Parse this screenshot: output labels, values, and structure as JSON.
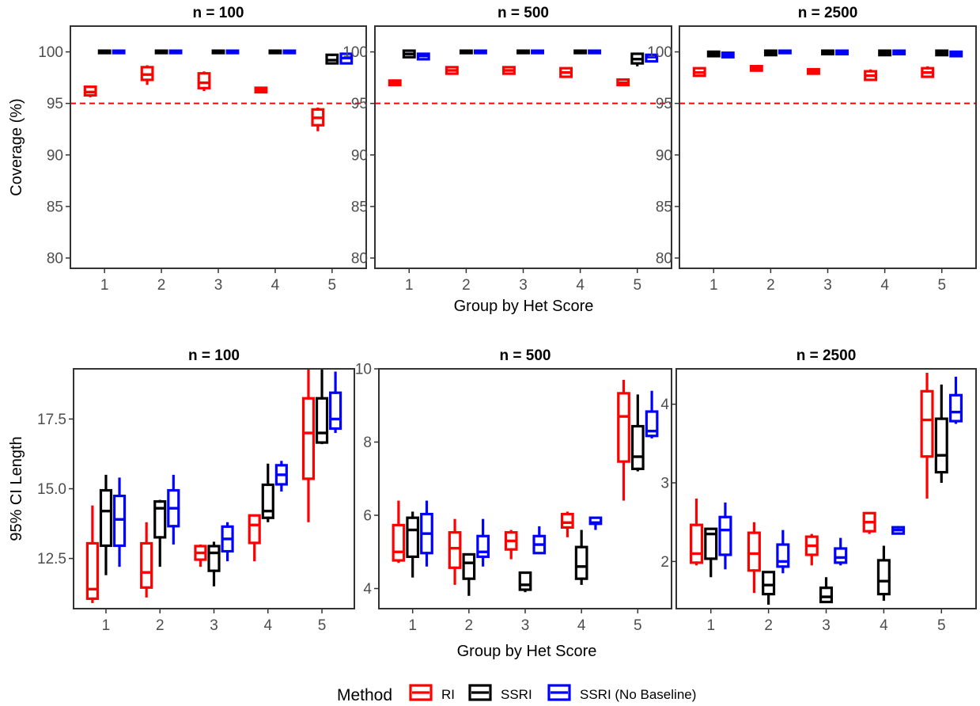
{
  "figure": {
    "x_axis_title": "Group by Het Score",
    "legend": {
      "title": "Method",
      "placement": "bottom"
    },
    "methods": [
      {
        "name": "RI",
        "color": "#ff0000"
      },
      {
        "name": "SSRI",
        "color": "#000000"
      },
      {
        "name": "SSRI (No Baseline)",
        "color": "#0000ff"
      }
    ]
  },
  "chart_data": [
    {
      "type": "box",
      "title": "n = 100",
      "ylabel": "Coverage (%)",
      "categories": [
        "1",
        "2",
        "3",
        "4",
        "5"
      ],
      "ylim": [
        79,
        102.5
      ],
      "yticks": [
        80,
        85,
        90,
        95,
        100
      ],
      "reference_line": 95,
      "series": [
        {
          "name": "RI",
          "boxes": [
            [
              95.6,
              95.9,
              96.1,
              96.5,
              96.7
            ],
            [
              96.8,
              97.4,
              97.8,
              98.4,
              98.7
            ],
            [
              96.2,
              96.6,
              97.0,
              97.8,
              98.1
            ],
            [
              96.1,
              96.2,
              96.3,
              96.4,
              96.5
            ],
            [
              92.3,
              93.0,
              93.6,
              94.3,
              94.6
            ]
          ]
        },
        {
          "name": "SSRI",
          "boxes": [
            [
              100,
              100,
              100,
              100,
              100
            ],
            [
              100,
              100,
              100,
              100,
              100
            ],
            [
              100,
              100,
              100,
              100,
              100
            ],
            [
              100,
              100,
              100,
              100,
              100
            ],
            [
              98.9,
              99.0,
              99.2,
              99.6,
              99.7
            ]
          ]
        },
        {
          "name": "SSRI (No Baseline)",
          "boxes": [
            [
              100,
              100,
              100,
              100,
              100
            ],
            [
              100,
              100,
              100,
              100,
              100
            ],
            [
              100,
              100,
              100,
              100,
              100
            ],
            [
              100,
              100,
              100,
              100,
              100
            ],
            [
              98.8,
              99.0,
              99.4,
              99.7,
              99.9
            ]
          ]
        }
      ]
    },
    {
      "type": "box",
      "title": "n = 500",
      "ylabel": "",
      "categories": [
        "1",
        "2",
        "3",
        "4",
        "5"
      ],
      "ylim": [
        79,
        102.5
      ],
      "yticks": [
        80,
        85,
        90,
        95,
        100
      ],
      "reference_line": 95,
      "series": [
        {
          "name": "RI",
          "boxes": [
            [
              96.8,
              96.9,
              97.0,
              97.1,
              97.2
            ],
            [
              97.8,
              98.0,
              98.2,
              98.4,
              98.6
            ],
            [
              97.9,
              98.0,
              98.2,
              98.4,
              98.5
            ],
            [
              97.5,
              97.7,
              98.0,
              98.3,
              98.5
            ],
            [
              96.8,
              96.9,
              97.0,
              97.2,
              97.3
            ]
          ]
        },
        {
          "name": "SSRI",
          "boxes": [
            [
              99.4,
              99.6,
              99.8,
              100,
              100.1
            ],
            [
              100,
              100,
              100,
              100,
              100
            ],
            [
              100,
              100,
              100,
              100,
              100
            ],
            [
              100,
              100,
              100,
              100,
              100
            ],
            [
              98.6,
              99.0,
              99.3,
              99.7,
              99.9
            ]
          ]
        },
        {
          "name": "SSRI (No Baseline)",
          "boxes": [
            [
              99.3,
              99.4,
              99.6,
              99.7,
              99.8
            ],
            [
              100,
              100,
              100,
              100,
              100
            ],
            [
              100,
              100,
              100,
              100,
              100
            ],
            [
              100,
              100,
              100,
              100,
              100
            ],
            [
              99.1,
              99.2,
              99.5,
              99.6,
              99.7
            ]
          ]
        }
      ]
    },
    {
      "type": "box",
      "title": "n = 2500",
      "ylabel": "",
      "categories": [
        "1",
        "2",
        "3",
        "4",
        "5"
      ],
      "ylim": [
        79,
        102.5
      ],
      "yticks": [
        80,
        85,
        90,
        95,
        100
      ],
      "reference_line": 95,
      "series": [
        {
          "name": "RI",
          "boxes": [
            [
              97.7,
              97.8,
              98.0,
              98.3,
              98.4
            ],
            [
              98.2,
              98.3,
              98.4,
              98.5,
              98.6
            ],
            [
              97.9,
              98.0,
              98.1,
              98.2,
              98.3
            ],
            [
              97.2,
              97.4,
              97.7,
              98.0,
              98.3
            ],
            [
              97.5,
              97.7,
              98.0,
              98.3,
              98.6
            ]
          ]
        },
        {
          "name": "SSRI",
          "boxes": [
            [
              99.6,
              99.7,
              99.8,
              99.9,
              100.0
            ],
            [
              99.7,
              99.8,
              99.9,
              100,
              100.1
            ],
            [
              99.8,
              99.9,
              100,
              100,
              100.1
            ],
            [
              99.7,
              99.8,
              99.9,
              100,
              100.1
            ],
            [
              99.7,
              99.8,
              99.9,
              100,
              100.1
            ]
          ]
        },
        {
          "name": "SSRI (No Baseline)",
          "boxes": [
            [
              99.5,
              99.6,
              99.7,
              99.8,
              99.9
            ],
            [
              99.9,
              100,
              100,
              100,
              100.1
            ],
            [
              99.8,
              99.9,
              100,
              100,
              100.1
            ],
            [
              99.8,
              99.9,
              100,
              100,
              100.1
            ],
            [
              99.6,
              99.7,
              99.8,
              99.9,
              100.0
            ]
          ]
        }
      ]
    },
    {
      "type": "box",
      "title": "n = 100",
      "ylabel": "95% CI Length",
      "categories": [
        "1",
        "2",
        "3",
        "4",
        "5"
      ],
      "ylim": [
        10.7,
        19.3
      ],
      "yticks": [
        12.5,
        15.0,
        17.5
      ],
      "ytick_labels": [
        "12.5",
        "15.0",
        "17.5"
      ],
      "series": [
        {
          "name": "RI",
          "boxes": [
            [
              10.9,
              11.1,
              11.4,
              13.0,
              14.4
            ],
            [
              11.1,
              11.5,
              12.0,
              13.0,
              13.8
            ],
            [
              12.2,
              12.5,
              12.7,
              12.9,
              13.0
            ],
            [
              12.4,
              13.1,
              13.7,
              14.0,
              14.0
            ],
            [
              13.8,
              15.4,
              17.0,
              18.2,
              19.3
            ]
          ]
        },
        {
          "name": "SSRI",
          "boxes": [
            [
              11.9,
              13.0,
              14.2,
              14.9,
              15.5
            ],
            [
              12.2,
              13.3,
              14.3,
              14.5,
              14.6
            ],
            [
              11.5,
              12.1,
              12.7,
              12.9,
              13.1
            ],
            [
              13.8,
              14.0,
              14.2,
              15.1,
              15.9
            ],
            [
              16.6,
              16.7,
              17.0,
              18.2,
              19.3
            ]
          ]
        },
        {
          "name": "SSRI (No Baseline)",
          "boxes": [
            [
              12.2,
              13.0,
              13.9,
              14.7,
              15.4
            ],
            [
              13.0,
              13.7,
              14.3,
              14.9,
              15.5
            ],
            [
              12.4,
              12.8,
              13.2,
              13.6,
              13.8
            ],
            [
              14.9,
              15.2,
              15.5,
              15.8,
              16.0
            ],
            [
              17.0,
              17.2,
              17.5,
              18.4,
              19.2
            ]
          ]
        }
      ]
    },
    {
      "type": "box",
      "title": "n = 500",
      "ylabel": "",
      "categories": [
        "1",
        "2",
        "3",
        "4",
        "5"
      ],
      "ylim": [
        3.45,
        10.0
      ],
      "yticks": [
        4,
        6,
        8,
        10
      ],
      "ytick_labels": [
        "4",
        "6",
        "8",
        "10"
      ],
      "series": [
        {
          "name": "RI",
          "boxes": [
            [
              4.7,
              4.8,
              5.0,
              5.7,
              6.4
            ],
            [
              4.1,
              4.6,
              5.1,
              5.5,
              5.9
            ],
            [
              4.8,
              5.1,
              5.3,
              5.5,
              5.6
            ],
            [
              5.4,
              5.7,
              5.8,
              6.0,
              6.1
            ],
            [
              6.4,
              7.5,
              8.7,
              9.3,
              9.7
            ]
          ]
        },
        {
          "name": "SSRI",
          "boxes": [
            [
              4.3,
              4.9,
              5.6,
              5.9,
              6.1
            ],
            [
              3.8,
              4.3,
              4.7,
              4.9,
              4.9
            ],
            [
              3.9,
              4.0,
              4.1,
              4.4,
              4.4
            ],
            [
              4.1,
              4.3,
              4.6,
              5.1,
              5.6
            ],
            [
              7.2,
              7.3,
              7.6,
              8.4,
              9.3
            ]
          ]
        },
        {
          "name": "SSRI (No Baseline)",
          "boxes": [
            [
              4.6,
              5.0,
              5.5,
              6.0,
              6.4
            ],
            [
              4.6,
              4.9,
              5.0,
              5.4,
              5.9
            ],
            [
              5.0,
              5.0,
              5.2,
              5.4,
              5.7
            ],
            [
              5.6,
              5.8,
              5.8,
              5.9,
              5.9
            ],
            [
              8.1,
              8.2,
              8.3,
              8.8,
              9.4
            ]
          ]
        }
      ]
    },
    {
      "type": "box",
      "title": "n = 2500",
      "ylabel": "",
      "categories": [
        "1",
        "2",
        "3",
        "4",
        "5"
      ],
      "ylim": [
        1.4,
        4.45
      ],
      "yticks": [
        2,
        3,
        4
      ],
      "ytick_labels": [
        "2",
        "3",
        "4"
      ],
      "series": [
        {
          "name": "RI",
          "boxes": [
            [
              1.95,
              2.0,
              2.1,
              2.45,
              2.8
            ],
            [
              1.6,
              1.9,
              2.1,
              2.35,
              2.5
            ],
            [
              1.95,
              2.1,
              2.2,
              2.3,
              2.35
            ],
            [
              2.35,
              2.4,
              2.5,
              2.6,
              2.6
            ],
            [
              2.8,
              3.35,
              3.8,
              4.15,
              4.4
            ]
          ]
        },
        {
          "name": "SSRI",
          "boxes": [
            [
              1.8,
              2.05,
              2.35,
              2.4,
              2.4
            ],
            [
              1.45,
              1.6,
              1.7,
              1.85,
              1.85
            ],
            [
              1.5,
              1.5,
              1.55,
              1.65,
              1.8
            ],
            [
              1.5,
              1.6,
              1.75,
              2.0,
              2.2
            ],
            [
              3.0,
              3.15,
              3.35,
              3.8,
              4.25
            ]
          ]
        },
        {
          "name": "SSRI (No Baseline)",
          "boxes": [
            [
              1.9,
              2.1,
              2.4,
              2.55,
              2.75
            ],
            [
              1.85,
              1.95,
              2.0,
              2.2,
              2.4
            ],
            [
              1.95,
              2.0,
              2.05,
              2.15,
              2.3
            ],
            [
              2.35,
              2.37,
              2.4,
              2.42,
              2.45
            ],
            [
              3.75,
              3.8,
              3.9,
              4.1,
              4.35
            ]
          ]
        }
      ]
    }
  ]
}
